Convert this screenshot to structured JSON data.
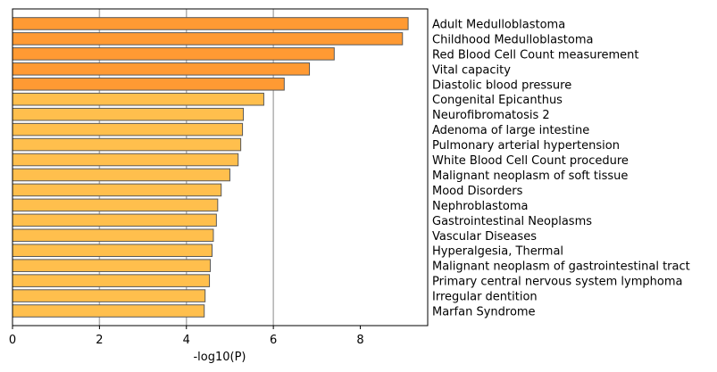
{
  "chart_data": {
    "type": "bar",
    "orientation": "horizontal",
    "categories": [
      "Adult Medulloblastoma",
      "Childhood Medulloblastoma",
      "Red Blood Cell Count measurement",
      "Vital capacity",
      "Diastolic blood pressure",
      "Congenital Epicanthus",
      "Neurofibromatosis 2",
      "Adenoma of large intestine",
      "Pulmonary arterial hypertension",
      "White Blood Cell Count procedure",
      "Malignant neoplasm of soft tissue",
      "Mood Disorders",
      "Nephroblastoma",
      "Gastrointestinal Neoplasms",
      "Vascular Diseases",
      "Hyperalgesia, Thermal",
      "Malignant neoplasm of gastrointestinal tract",
      "Primary central nervous system lymphoma",
      "Irregular dentition",
      "Marfan Syndrome"
    ],
    "values": [
      9.1,
      8.97,
      7.4,
      6.83,
      6.25,
      5.78,
      5.31,
      5.29,
      5.25,
      5.19,
      5.0,
      4.8,
      4.72,
      4.69,
      4.62,
      4.59,
      4.55,
      4.53,
      4.43,
      4.41
    ],
    "bar_colors": [
      "#ff9a33",
      "#ff9a33",
      "#ff9a33",
      "#ff9a33",
      "#ff9a33",
      "#ffbf4d",
      "#ffbf4d",
      "#ffbf4d",
      "#ffbf4d",
      "#ffbf4d",
      "#ffbf4d",
      "#ffbf4d",
      "#ffbf4d",
      "#ffbf4d",
      "#ffbf4d",
      "#ffbf4d",
      "#ffbf4d",
      "#ffbf4d",
      "#ffbf4d",
      "#ffbf4d"
    ],
    "xlabel": "-log10(P)",
    "ylabel": "",
    "title": "",
    "xlim": [
      0,
      9.55
    ],
    "xticks": [
      0,
      2,
      4,
      6,
      8
    ],
    "xgrid": [
      2,
      4,
      6
    ],
    "grid": "vertical",
    "category_labels_side": "right"
  }
}
